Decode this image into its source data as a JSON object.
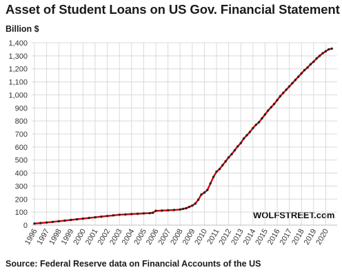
{
  "chart_data": {
    "type": "line",
    "title": "Asset of Student Loans on US Gov. Financial Statement",
    "ylabel": "Billion $",
    "xlabel": "",
    "source": "Source: Federal Reserve data on Financial Accounts of the US",
    "watermark": "WOLFSTREET.com",
    "ylim": [
      0,
      1400
    ],
    "yticks": [
      "0",
      "100",
      "200",
      "300",
      "400",
      "500",
      "600",
      "700",
      "800",
      "900",
      "1,000",
      "1,100",
      "1,200",
      "1,300",
      "1,400"
    ],
    "xticks": [
      "1996",
      "1997",
      "1998",
      "1999",
      "2000",
      "2001",
      "2002",
      "2003",
      "2004",
      "2005",
      "2006",
      "2007",
      "2008",
      "2009",
      "2010",
      "2011",
      "2012",
      "2013",
      "2014",
      "2015",
      "2016",
      "2017",
      "2018",
      "2019",
      "2020"
    ],
    "xlim": [
      1996,
      2020.5
    ],
    "grid": true,
    "series": [
      {
        "color": "#d40000",
        "marker_color": "#222222",
        "x": [
          1996,
          1996.5,
          1997,
          1997.5,
          1998,
          1998.5,
          1999,
          1999.5,
          2000,
          2000.5,
          2001,
          2001.5,
          2002,
          2002.5,
          2003,
          2003.5,
          2004,
          2004.5,
          2005,
          2005.5,
          2005.75,
          2006,
          2006.5,
          2007,
          2007.5,
          2008,
          2008.25,
          2008.5,
          2008.75,
          2009,
          2009.25,
          2009.5,
          2009.75,
          2010,
          2010.25,
          2010.5,
          2010.75,
          2011,
          2011.25,
          2011.5,
          2011.75,
          2012,
          2012.25,
          2012.5,
          2012.75,
          2013,
          2013.25,
          2013.5,
          2013.75,
          2014,
          2014.25,
          2014.5,
          2014.75,
          2015,
          2015.25,
          2015.5,
          2015.75,
          2016,
          2016.25,
          2016.5,
          2016.75,
          2017,
          2017.25,
          2017.5,
          2017.75,
          2018,
          2018.25,
          2018.5,
          2018.75,
          2019,
          2019.25,
          2019.5,
          2019.75,
          2020,
          2020.25,
          2020.5
        ],
        "values": [
          12,
          16,
          20,
          25,
          30,
          35,
          40,
          45,
          50,
          55,
          60,
          65,
          70,
          75,
          80,
          82,
          85,
          87,
          90,
          92,
          95,
          110,
          112,
          114,
          116,
          120,
          125,
          130,
          140,
          150,
          165,
          195,
          235,
          250,
          270,
          320,
          370,
          410,
          430,
          460,
          490,
          520,
          545,
          575,
          605,
          630,
          665,
          690,
          715,
          745,
          770,
          790,
          820,
          850,
          880,
          905,
          930,
          960,
          990,
          1015,
          1040,
          1065,
          1090,
          1115,
          1140,
          1165,
          1190,
          1210,
          1235,
          1255,
          1280,
          1300,
          1320,
          1335,
          1350,
          1355
        ]
      }
    ]
  }
}
